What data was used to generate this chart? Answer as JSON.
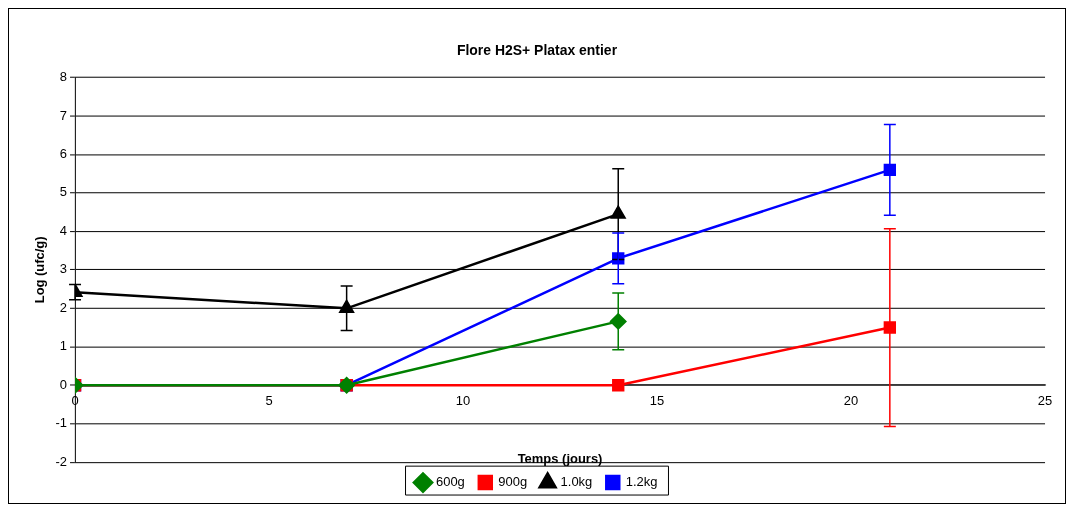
{
  "chart_data": {
    "type": "line",
    "title": "Flore H2S+ Platax entier",
    "xlabel": "Temps (jours)",
    "ylabel": "Log (ufc/g)",
    "xlim": [
      0,
      25
    ],
    "xticks": [
      0,
      5,
      10,
      15,
      20,
      25
    ],
    "ylim": [
      -2,
      8
    ],
    "yticks": [
      -2,
      -1,
      0,
      1,
      2,
      3,
      4,
      5,
      6,
      7,
      8
    ],
    "grid": "y",
    "legend": "bottom",
    "series": [
      {
        "name": "600g",
        "color": "#008000",
        "marker": "diamond",
        "x": [
          0,
          7,
          14
        ],
        "values": [
          0,
          0,
          1.66
        ],
        "errors": [
          null,
          null,
          0.74
        ]
      },
      {
        "name": "900g",
        "color": "#ff0000",
        "marker": "square",
        "x": [
          0,
          7,
          14,
          21
        ],
        "values": [
          0,
          0,
          0,
          1.5
        ],
        "errors": [
          null,
          null,
          null,
          2.57
        ]
      },
      {
        "name": "1.0kg",
        "color": "#000000",
        "marker": "triangle",
        "x": [
          0,
          7,
          14
        ],
        "values": [
          2.42,
          2.0,
          4.45
        ],
        "errors": [
          0.2,
          0.58,
          1.18
        ]
      },
      {
        "name": "1.2kg",
        "color": "#0000ff",
        "marker": "square",
        "x": [
          0,
          7,
          14,
          21
        ],
        "values": [
          0,
          0,
          3.3,
          5.6
        ],
        "errors": [
          null,
          null,
          0.66,
          1.18
        ]
      }
    ]
  }
}
